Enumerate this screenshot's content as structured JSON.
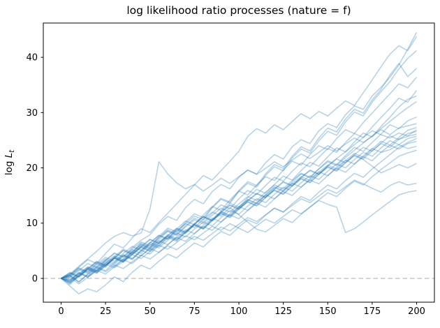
{
  "title": "log likelihood ratio processes (nature = f)",
  "chart_data": {
    "type": "line",
    "title": "log likelihood ratio processes (nature = f)",
    "xlabel": "",
    "ylabel": {
      "prefix": "log",
      "var": "L",
      "sub": "t"
    },
    "xlim": [
      -10,
      210
    ],
    "ylim": [
      -4.3,
      46.2
    ],
    "x_ticks": [
      0,
      25,
      50,
      75,
      100,
      125,
      150,
      175,
      200
    ],
    "y_ticks": [
      0,
      10,
      20,
      30,
      40
    ],
    "grid": false,
    "legend": "none",
    "zero_line": {
      "y": 0,
      "style": "dashed",
      "color": "#b3b3b3"
    },
    "line_color": "#1f77b4",
    "line_opacity": 0.32,
    "line_width": 1.6,
    "t_step": 5,
    "t_max": 200,
    "series": [
      {
        "name": "path-01",
        "values": [
          0,
          -0.6,
          0.9,
          2.1,
          1.4,
          3.2,
          4.5,
          3.8,
          5.6,
          6.9,
          7.9,
          9.8,
          11.2,
          10.5,
          12.8,
          14.3,
          13.5,
          15.7,
          17.0,
          16.2,
          18.3,
          19.6,
          18.9,
          20.9,
          22.4,
          21.6,
          23.8,
          25.1,
          24.4,
          26.7,
          28.0,
          27.3,
          29.6,
          31.2,
          30.6,
          33.0,
          34.6,
          36.4,
          38.6,
          41.5,
          44.5
        ]
      },
      {
        "name": "path-02",
        "values": [
          0,
          0.7,
          2.0,
          3.4,
          2.7,
          4.5,
          6.2,
          5.5,
          7.3,
          9.0,
          8.3,
          10.1,
          11.8,
          13.5,
          15.2,
          16.9,
          18.6,
          17.8,
          19.5,
          21.2,
          23.0,
          25.7,
          27.1,
          26.3,
          27.8,
          26.9,
          28.4,
          29.8,
          28.9,
          30.2,
          29.4,
          30.8,
          32.1,
          31.3,
          33.6,
          35.9,
          38.3,
          40.6,
          42.1,
          41.2,
          43.8
        ]
      },
      {
        "name": "path-03",
        "values": [
          0,
          -1.1,
          0.4,
          1.6,
          0.9,
          2.3,
          3.7,
          3.0,
          4.9,
          6.2,
          5.5,
          7.4,
          8.8,
          8.1,
          9.9,
          11.3,
          10.6,
          12.8,
          14.3,
          13.6,
          15.7,
          17.2,
          16.5,
          18.6,
          20.2,
          19.5,
          21.8,
          23.4,
          22.7,
          24.9,
          26.6,
          25.9,
          28.3,
          30.1,
          29.4,
          31.9,
          33.8,
          35.6,
          37.9,
          39.8,
          41.2
        ]
      },
      {
        "name": "path-04",
        "values": [
          0,
          0.5,
          1.8,
          1.1,
          2.7,
          2.0,
          3.9,
          5.3,
          4.6,
          6.4,
          5.7,
          7.6,
          9.1,
          8.4,
          10.2,
          11.7,
          11.0,
          12.9,
          14.5,
          13.8,
          15.9,
          17.5,
          16.8,
          18.9,
          20.6,
          19.9,
          22.1,
          23.8,
          23.1,
          25.4,
          27.2,
          26.5,
          28.8,
          30.6,
          29.9,
          32.3,
          34.2,
          36.8,
          38.9,
          36.5,
          38.0
        ]
      },
      {
        "name": "path-05",
        "values": [
          0,
          -0.8,
          0.6,
          1.9,
          1.2,
          2.8,
          4.1,
          3.4,
          5.2,
          4.5,
          6.3,
          7.8,
          7.1,
          8.9,
          10.4,
          9.7,
          11.5,
          13.0,
          12.3,
          14.2,
          15.8,
          15.1,
          16.9,
          18.4,
          17.7,
          19.6,
          21.2,
          20.5,
          22.4,
          24.0,
          23.3,
          25.3,
          26.9,
          26.2,
          28.2,
          29.9,
          31.7,
          33.4,
          35.2,
          34.5,
          36.4
        ]
      },
      {
        "name": "path-06",
        "values": [
          0,
          0.9,
          0.2,
          1.5,
          2.9,
          2.2,
          3.8,
          3.1,
          4.8,
          6.1,
          5.4,
          7.0,
          8.5,
          7.8,
          9.5,
          10.9,
          10.2,
          11.8,
          13.3,
          12.6,
          14.4,
          15.9,
          15.2,
          16.8,
          18.3,
          17.6,
          19.4,
          20.9,
          20.2,
          21.9,
          23.5,
          22.8,
          24.6,
          26.2,
          25.5,
          27.4,
          29.1,
          30.8,
          32.6,
          31.9,
          34.0
        ]
      },
      {
        "name": "path-07",
        "values": [
          0,
          -0.4,
          1.1,
          0.4,
          1.9,
          3.2,
          2.5,
          4.1,
          3.4,
          5.0,
          6.5,
          5.8,
          7.3,
          8.8,
          8.1,
          9.8,
          11.2,
          10.5,
          12.1,
          13.6,
          12.9,
          14.6,
          16.1,
          15.4,
          17.0,
          18.5,
          17.8,
          19.5,
          21.0,
          20.3,
          22.0,
          23.6,
          22.9,
          24.7,
          26.3,
          25.6,
          27.5,
          29.2,
          31.0,
          32.4,
          33.0
        ]
      },
      {
        "name": "path-08",
        "values": [
          0,
          0.6,
          -0.7,
          0.8,
          2.1,
          1.4,
          2.9,
          4.3,
          3.6,
          5.1,
          4.4,
          6.0,
          7.4,
          6.7,
          8.3,
          9.7,
          9.0,
          10.6,
          12.0,
          11.3,
          12.8,
          14.3,
          13.6,
          15.1,
          16.6,
          15.9,
          17.4,
          18.9,
          18.2,
          19.8,
          21.3,
          20.6,
          22.2,
          23.7,
          23.0,
          24.6,
          26.1,
          27.8,
          27.1,
          28.5,
          29.2
        ]
      },
      {
        "name": "path-09",
        "values": [
          0,
          0.8,
          2.2,
          3.5,
          4.9,
          6.4,
          7.6,
          8.3,
          7.7,
          8.2,
          12.5,
          21.1,
          18.9,
          17.3,
          16.2,
          17.0,
          15.8,
          16.9,
          18.1,
          17.2,
          18.4,
          19.6,
          18.8,
          19.9,
          21.1,
          20.2,
          21.4,
          22.5,
          21.7,
          22.8,
          24.0,
          23.1,
          24.3,
          25.4,
          24.6,
          25.7,
          26.9,
          26.0,
          27.2,
          27.6,
          28.0
        ]
      },
      {
        "name": "path-10",
        "values": [
          0,
          -0.5,
          0.7,
          2.0,
          1.3,
          2.6,
          3.9,
          3.2,
          4.6,
          5.9,
          5.2,
          6.6,
          7.9,
          7.2,
          8.6,
          9.9,
          9.2,
          10.7,
          12.1,
          11.4,
          12.9,
          14.2,
          13.5,
          15.0,
          16.4,
          15.7,
          17.1,
          18.4,
          17.7,
          19.2,
          20.5,
          19.8,
          21.3,
          22.6,
          21.9,
          23.4,
          24.8,
          24.1,
          25.5,
          26.8,
          27.3
        ]
      },
      {
        "name": "path-11",
        "values": [
          0,
          1.0,
          0.3,
          1.7,
          3.0,
          2.3,
          3.6,
          5.0,
          4.3,
          5.6,
          7.0,
          6.3,
          7.7,
          9.0,
          8.3,
          9.8,
          11.1,
          10.4,
          11.9,
          13.2,
          12.5,
          14.0,
          15.3,
          14.6,
          16.1,
          17.4,
          16.7,
          18.2,
          19.5,
          18.8,
          20.3,
          21.6,
          20.9,
          22.4,
          23.7,
          23.0,
          24.5,
          25.8,
          25.1,
          26.2,
          26.6
        ]
      },
      {
        "name": "path-12",
        "values": [
          0,
          -0.9,
          0.5,
          1.8,
          1.1,
          2.4,
          3.7,
          3.0,
          4.4,
          5.7,
          5.0,
          6.4,
          7.7,
          7.0,
          8.4,
          9.7,
          9.0,
          10.5,
          11.8,
          11.1,
          12.6,
          13.9,
          13.2,
          14.7,
          16.0,
          15.3,
          16.8,
          18.1,
          17.4,
          18.9,
          20.2,
          19.5,
          21.0,
          22.3,
          21.6,
          23.1,
          24.4,
          23.7,
          25.2,
          25.7,
          26.1
        ]
      },
      {
        "name": "path-13",
        "values": [
          0,
          0.4,
          1.6,
          0.9,
          2.2,
          3.5,
          2.8,
          4.2,
          3.5,
          4.9,
          6.2,
          5.5,
          6.9,
          8.2,
          7.5,
          8.9,
          10.2,
          9.5,
          11.0,
          12.3,
          11.6,
          13.1,
          14.4,
          13.7,
          15.2,
          16.5,
          15.8,
          17.3,
          18.6,
          17.9,
          19.4,
          20.7,
          20.0,
          21.5,
          22.8,
          22.1,
          23.6,
          24.9,
          24.2,
          25.3,
          25.7
        ]
      },
      {
        "name": "path-14",
        "values": [
          0,
          -1.4,
          -2.8,
          -1.9,
          -2.4,
          -1.2,
          0.3,
          -0.6,
          1.1,
          2.4,
          1.7,
          3.1,
          4.4,
          3.7,
          5.1,
          6.4,
          5.7,
          7.2,
          8.5,
          7.8,
          9.3,
          10.6,
          9.9,
          11.4,
          12.7,
          12.0,
          13.5,
          14.8,
          14.1,
          15.6,
          16.9,
          16.2,
          17.7,
          19.0,
          18.3,
          19.8,
          21.1,
          22.4,
          23.7,
          24.6,
          25.3
        ]
      },
      {
        "name": "path-15",
        "values": [
          0,
          0.3,
          -1.0,
          0.2,
          1.5,
          0.8,
          2.1,
          3.4,
          2.7,
          4.1,
          5.4,
          4.7,
          6.1,
          7.4,
          6.7,
          8.1,
          9.4,
          8.7,
          10.2,
          11.5,
          10.8,
          12.3,
          13.6,
          12.9,
          14.4,
          15.7,
          15.0,
          16.5,
          17.8,
          17.1,
          18.6,
          19.9,
          19.2,
          20.7,
          22.0,
          21.3,
          22.8,
          24.1,
          23.4,
          24.4,
          24.8
        ]
      },
      {
        "name": "path-16",
        "values": [
          0,
          -0.2,
          1.0,
          0.3,
          1.6,
          2.9,
          2.2,
          3.5,
          4.8,
          4.1,
          5.5,
          6.8,
          6.1,
          7.5,
          8.8,
          8.1,
          9.6,
          10.9,
          10.2,
          11.7,
          13.0,
          12.3,
          13.8,
          15.1,
          14.4,
          15.9,
          17.2,
          16.5,
          18.0,
          19.3,
          18.6,
          20.1,
          21.4,
          20.7,
          22.2,
          23.5,
          22.8,
          23.3,
          24.2,
          23.5,
          23.9
        ]
      },
      {
        "name": "path-17",
        "values": [
          0,
          0.6,
          1.9,
          1.2,
          2.5,
          3.8,
          3.1,
          4.5,
          5.8,
          5.1,
          6.5,
          7.8,
          7.1,
          8.6,
          9.9,
          9.2,
          10.7,
          12.0,
          11.3,
          12.8,
          11.5,
          10.2,
          8.9,
          8.4,
          9.6,
          10.8,
          10.1,
          11.6,
          12.9,
          14.2,
          15.5,
          14.8,
          16.3,
          17.6,
          16.9,
          18.4,
          19.7,
          20.9,
          22.1,
          22.7,
          23.2
        ]
      },
      {
        "name": "path-18",
        "values": [
          0,
          -0.7,
          0.4,
          1.7,
          1.0,
          2.3,
          3.6,
          2.9,
          4.3,
          5.6,
          4.9,
          6.3,
          7.6,
          6.9,
          8.3,
          9.6,
          8.9,
          10.4,
          11.7,
          11.0,
          12.5,
          13.8,
          13.1,
          14.6,
          15.9,
          15.2,
          16.7,
          18.0,
          17.3,
          18.8,
          20.1,
          19.4,
          20.9,
          22.2,
          21.5,
          20.3,
          19.1,
          19.8,
          20.6,
          20.0,
          20.8
        ]
      },
      {
        "name": "path-19",
        "values": [
          0,
          0.5,
          -0.6,
          0.7,
          1.9,
          1.2,
          2.4,
          1.8,
          3.0,
          4.2,
          3.5,
          4.7,
          5.9,
          5.2,
          6.4,
          7.6,
          6.9,
          8.1,
          9.3,
          8.6,
          9.8,
          11.0,
          10.3,
          11.5,
          12.7,
          12.0,
          13.2,
          14.4,
          13.7,
          14.9,
          16.1,
          15.4,
          16.6,
          17.8,
          17.1,
          16.3,
          15.6,
          16.8,
          17.5,
          16.9,
          17.2
        ]
      },
      {
        "name": "path-20",
        "values": [
          0,
          -0.3,
          0.9,
          0.2,
          1.4,
          2.6,
          1.9,
          3.1,
          4.3,
          3.6,
          4.8,
          6.0,
          5.3,
          6.5,
          7.7,
          7.0,
          8.2,
          9.4,
          8.7,
          9.9,
          9.1,
          8.3,
          9.5,
          10.7,
          10.0,
          11.2,
          12.4,
          11.7,
          12.9,
          14.1,
          13.4,
          12.9,
          8.3,
          9.0,
          10.2,
          11.5,
          12.7,
          13.9,
          15.1,
          15.6,
          15.9
        ]
      },
      {
        "name": "path-21",
        "values": [
          0,
          0.2,
          1.4,
          2.7,
          2.0,
          3.3,
          4.6,
          3.9,
          5.3,
          6.6,
          5.9,
          7.3,
          8.6,
          7.9,
          9.3,
          10.6,
          9.9,
          11.4,
          12.7,
          12.0,
          13.5,
          14.8,
          14.1,
          15.6,
          16.9,
          16.2,
          17.7,
          19.0,
          18.3,
          19.8,
          21.1,
          20.4,
          21.9,
          23.2,
          24.5,
          25.8,
          27.1,
          28.4,
          29.7,
          30.9,
          32.0
        ]
      },
      {
        "name": "path-22",
        "values": [
          0,
          1.1,
          0.4,
          1.8,
          3.1,
          2.4,
          3.7,
          5.1,
          4.4,
          5.8,
          7.1,
          6.4,
          7.8,
          9.1,
          8.4,
          9.9,
          11.2,
          10.5,
          12.0,
          13.3,
          12.6,
          14.1,
          15.4,
          14.7,
          16.2,
          17.5,
          16.8,
          18.3,
          19.6,
          18.9,
          20.4,
          21.7,
          22.9,
          24.2,
          25.5,
          26.7,
          26.0,
          25.4,
          26.3,
          25.8,
          26.9
        ]
      }
    ]
  },
  "style": {
    "spine_color": "#000000",
    "tick_color": "#000000",
    "text_color": "#000000",
    "background": "#ffffff"
  }
}
